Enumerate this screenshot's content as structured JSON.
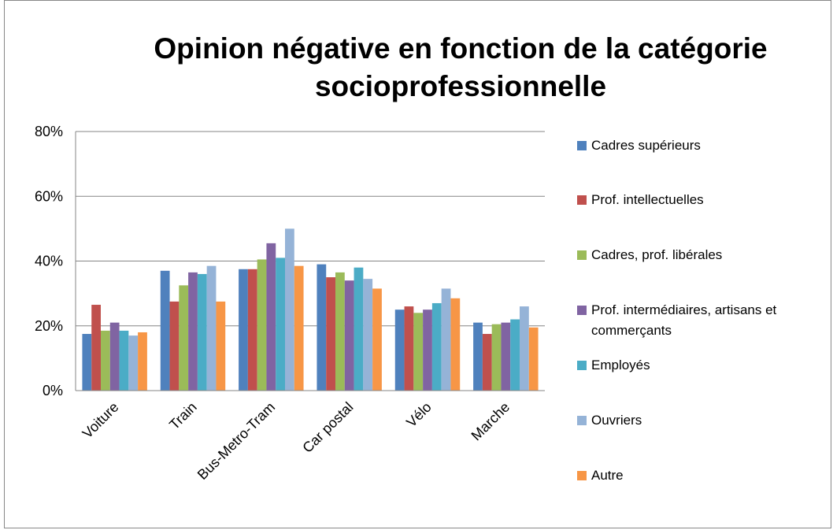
{
  "chart_data": {
    "type": "bar",
    "title": "Opinion négative en fonction de la catégorie socioprofessionnelle",
    "categories": [
      "Voiture",
      "Train",
      "Bus-Metro-Tram",
      "Car postal",
      "Vélo",
      "Marche"
    ],
    "series": [
      {
        "name": "Cadres supérieurs",
        "color": "#4f81bd",
        "values": [
          17.5,
          37,
          37.5,
          39,
          25,
          21
        ]
      },
      {
        "name": "Prof. intellectuelles",
        "color": "#c0504d",
        "values": [
          26.5,
          27.5,
          37.5,
          35,
          26,
          17.5
        ]
      },
      {
        "name": "Cadres, prof. libérales",
        "color": "#9bbb59",
        "values": [
          18.5,
          32.5,
          40.5,
          36.5,
          24,
          20.5
        ]
      },
      {
        "name": "Prof. intermédiaires, artisans et commerçants",
        "color": "#8064a2",
        "values": [
          21,
          36.5,
          45.5,
          34,
          25,
          21
        ]
      },
      {
        "name": "Employés",
        "color": "#4bacc6",
        "values": [
          18.5,
          36,
          41,
          38,
          27,
          22
        ]
      },
      {
        "name": "Ouvriers",
        "color": "#95b3d7",
        "values": [
          17,
          38.5,
          50,
          34.5,
          31.5,
          26
        ]
      },
      {
        "name": "Autre",
        "color": "#f79646",
        "values": [
          18,
          27.5,
          38.5,
          31.5,
          28.5,
          19.5
        ]
      }
    ],
    "ylim": [
      0,
      80
    ],
    "yticks": [
      {
        "value": 0,
        "label": "0%"
      },
      {
        "value": 20,
        "label": "20%"
      },
      {
        "value": 40,
        "label": "40%"
      },
      {
        "value": 60,
        "label": "60%"
      },
      {
        "value": 80,
        "label": "80%"
      }
    ],
    "grid": true,
    "legend": "right"
  }
}
